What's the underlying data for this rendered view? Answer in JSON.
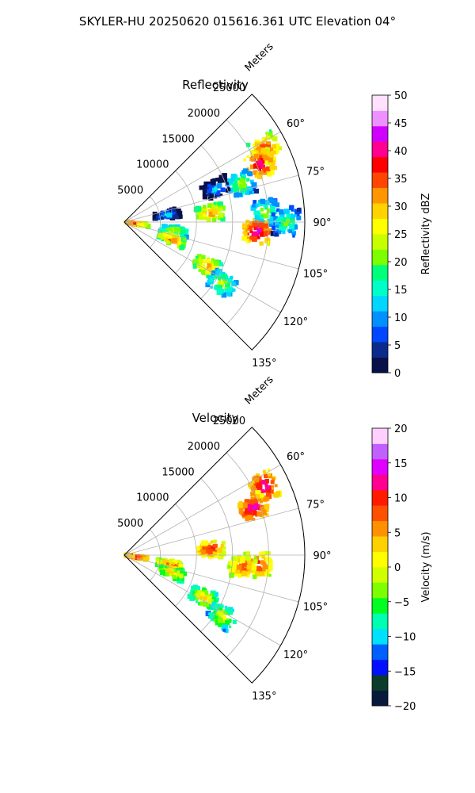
{
  "figure": {
    "title": "SKYLER-HU  20250620  015616.361 UTC Elevation 04°"
  },
  "colors": {
    "reflectivity_scale": [
      "#08104a",
      "#0b2a8c",
      "#0047ff",
      "#0090ff",
      "#00d6ff",
      "#00ffc8",
      "#00ff7a",
      "#7dff00",
      "#c8ff00",
      "#ffff00",
      "#ffd200",
      "#ff9600",
      "#ff4600",
      "#ff0000",
      "#ff0090",
      "#d000ff",
      "#ee90ff",
      "#ffe0ff"
    ],
    "velocity_scale": [
      "#081a3c",
      "#0b3b2a",
      "#0010ff",
      "#0060ff",
      "#00e0ff",
      "#00ffb0",
      "#00ff20",
      "#7cff00",
      "#d0ff00",
      "#ffff00",
      "#ffd000",
      "#ff9000",
      "#ff5000",
      "#ff1a00",
      "#ff0090",
      "#e000ff",
      "#c060ff",
      "#ffd0ff"
    ],
    "grid": "#b0b0b0"
  },
  "chart_data": [
    {
      "type": "heatmap",
      "title": "Reflectivity",
      "radial_label": "Meters",
      "radial_ticks": [
        "5000",
        "10000",
        "15000",
        "20000",
        "25000"
      ],
      "angle_ticks": [
        "60°",
        "75°",
        "90°",
        "105°",
        "120°",
        "135°"
      ],
      "angle_range_deg": [
        45,
        135
      ],
      "radial_range_m": [
        0,
        25000
      ],
      "colorbar": {
        "label": "Reflectivity dBZ",
        "range": [
          0,
          50
        ],
        "ticks": [
          "0",
          "5",
          "10",
          "15",
          "20",
          "25",
          "30",
          "35",
          "40",
          "45",
          "50"
        ]
      },
      "echoes": [
        {
          "az": 63,
          "r": 22000,
          "dz": 38
        },
        {
          "az": 67,
          "r": 20500,
          "dz": 42
        },
        {
          "az": 72,
          "r": 17000,
          "dz": 25
        },
        {
          "az": 70,
          "r": 13500,
          "dz": 14
        },
        {
          "az": 84,
          "r": 12000,
          "dz": 35
        },
        {
          "az": 86,
          "r": 19500,
          "dz": 24
        },
        {
          "az": 94,
          "r": 18500,
          "dz": 44
        },
        {
          "az": 90,
          "r": 22500,
          "dz": 22
        },
        {
          "az": 100,
          "r": 7000,
          "dz": 28
        },
        {
          "az": 110,
          "r": 7000,
          "dz": 36
        },
        {
          "az": 118,
          "r": 13000,
          "dz": 34
        },
        {
          "az": 122,
          "r": 16000,
          "dz": 26
        },
        {
          "az": 98,
          "r": 1500,
          "dz": 38
        },
        {
          "az": 80,
          "r": 6000,
          "dz": 16
        }
      ]
    },
    {
      "type": "heatmap",
      "title": "Velocity",
      "radial_label": "Meters",
      "radial_ticks": [
        "5000",
        "10000",
        "15000",
        "20000",
        "25000"
      ],
      "angle_ticks": [
        "60°",
        "75°",
        "90°",
        "105°",
        "120°",
        "135°"
      ],
      "angle_range_deg": [
        45,
        135
      ],
      "radial_range_m": [
        0,
        25000
      ],
      "colorbar": {
        "label": "Velocity (m/s)",
        "range": [
          -20,
          20
        ],
        "ticks": [
          "−20",
          "−15",
          "−10",
          "−5",
          "0",
          "5",
          "10",
          "15",
          "20"
        ]
      },
      "echoes": [
        {
          "az": 64,
          "r": 21500,
          "v": 15
        },
        {
          "az": 70,
          "r": 19000,
          "v": 15
        },
        {
          "az": 86,
          "r": 12000,
          "v": 12
        },
        {
          "az": 94,
          "r": 18500,
          "v": 12
        },
        {
          "az": 96,
          "r": 16500,
          "v": 10
        },
        {
          "az": 102,
          "r": 6500,
          "v": 10
        },
        {
          "az": 110,
          "r": 7000,
          "v": 6
        },
        {
          "az": 118,
          "r": 12500,
          "v": 5
        },
        {
          "az": 122,
          "r": 16000,
          "v": 2
        },
        {
          "az": 98,
          "r": 1500,
          "v": 14
        }
      ]
    }
  ]
}
